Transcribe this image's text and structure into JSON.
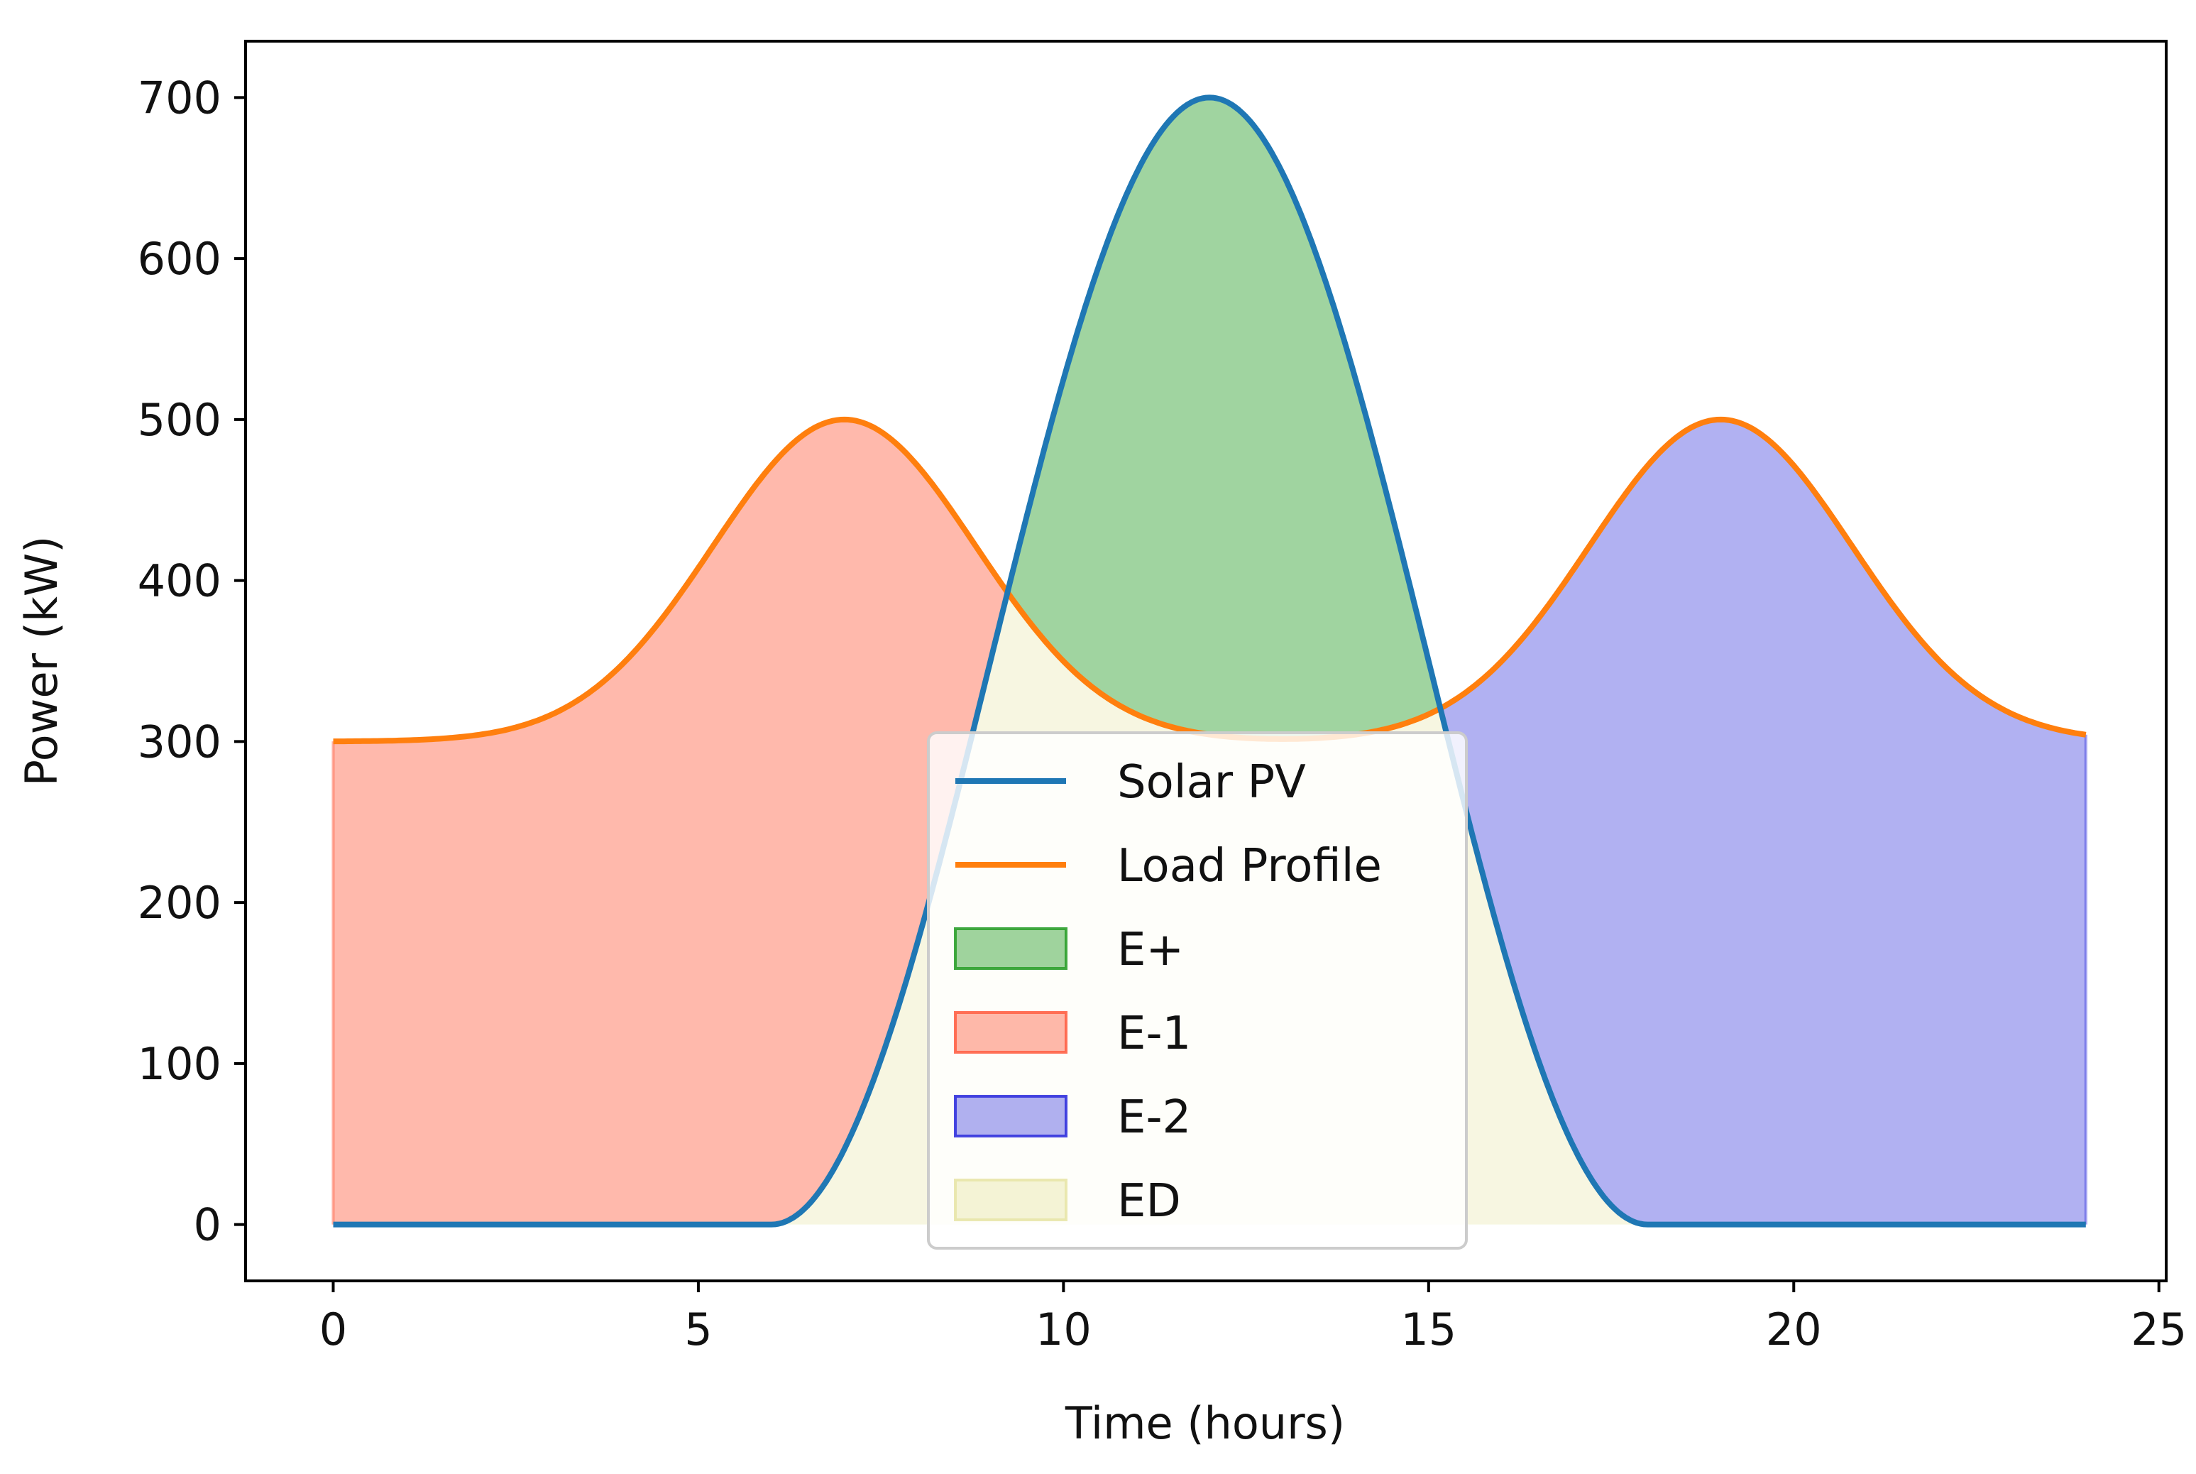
{
  "chart_data": {
    "type": "line",
    "title": "",
    "xlabel": "Time (hours)",
    "ylabel": "Power (kW)",
    "xlim": [
      -1.2,
      25.1
    ],
    "ylim": [
      -35,
      735
    ],
    "xticks": [
      0,
      5,
      10,
      15,
      20,
      25
    ],
    "yticks": [
      0,
      100,
      200,
      300,
      400,
      500,
      600,
      700
    ],
    "grid": false,
    "legend_position": "bottom-center",
    "x_range": [
      0,
      24
    ],
    "series": [
      {
        "name": "Solar PV",
        "color": "#1f77b4",
        "kind": "line",
        "description": "zero outside 6-18 h, 700 * sin^2(pi*(t-6)/12) between",
        "x": [
          0,
          6,
          7,
          8,
          9,
          10,
          11,
          12,
          13,
          14,
          15,
          16,
          17,
          18,
          24
        ],
        "values": [
          0,
          0,
          47,
          175,
          350,
          525,
          653,
          700,
          653,
          525,
          350,
          175,
          47,
          0,
          0
        ]
      },
      {
        "name": "Load Profile",
        "color": "#ff7f0e",
        "kind": "line",
        "description": "base 300 kW plus two 200 kW gaussian peaks at 7 h and 19 h (sigma 1.8 h)",
        "x": [
          0,
          2,
          4,
          6,
          7,
          8,
          9,
          10,
          12,
          13,
          14,
          16,
          18,
          19,
          20,
          22,
          24
        ],
        "values": [
          300,
          305,
          350,
          464,
          500,
          464,
          377,
          325,
          302,
          303,
          311,
          350,
          464,
          500,
          464,
          350,
          310
        ]
      }
    ],
    "fills": [
      {
        "name": "E+",
        "color": "#2ca02c",
        "description": "area where Solar PV exceeds Load Profile (approx 9-15.5 h)"
      },
      {
        "name": "E-1",
        "color": "#ff6347",
        "description": "area where Load Profile exceeds Solar PV in the morning (0-9 h)"
      },
      {
        "name": "E-2",
        "color": "#3333dd",
        "description": "area where Load Profile exceeds Solar PV in the evening (15.5-24 h)"
      },
      {
        "name": "ED",
        "color": "#e8e6a8",
        "description": "area under min(Solar PV, Load Profile)"
      }
    ]
  }
}
